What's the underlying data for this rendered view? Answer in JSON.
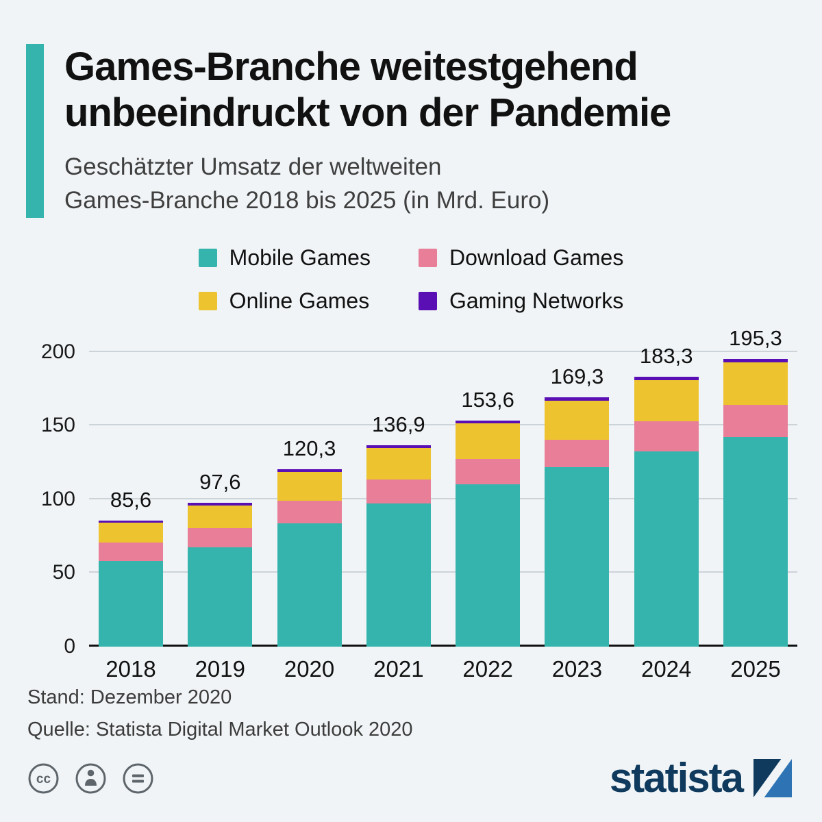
{
  "header": {
    "title_lines": [
      "Games-Branche weitestgehend",
      "unbeeindruckt von der Pandemie"
    ],
    "subtitle_lines": [
      "Geschätzter Umsatz der weltweiten",
      "Games-Branche 2018 bis 2025 (in Mrd. Euro)"
    ]
  },
  "chart_data": {
    "type": "bar",
    "stacked": true,
    "title": "Geschätzter Umsatz der weltweiten Games-Branche 2018 bis 2025 (in Mrd. Euro)",
    "categories": [
      "2018",
      "2019",
      "2020",
      "2021",
      "2022",
      "2023",
      "2024",
      "2025"
    ],
    "series": [
      {
        "name": "Mobile Games",
        "color": "#35b4ad",
        "values": [
          58.0,
          67.4,
          83.8,
          97.2,
          110.0,
          122.0,
          132.4,
          142.3
        ]
      },
      {
        "name": "Download Games",
        "color": "#e87e98",
        "values": [
          12.7,
          13.0,
          15.2,
          16.3,
          17.3,
          18.6,
          20.5,
          21.7
        ]
      },
      {
        "name": "Online Games",
        "color": "#edc32f",
        "values": [
          13.4,
          15.6,
          19.4,
          21.4,
          24.2,
          26.4,
          28.0,
          28.9
        ]
      },
      {
        "name": "Gaming Networks",
        "color": "#5a0fb4",
        "values": [
          1.5,
          1.6,
          1.9,
          2.0,
          2.1,
          2.3,
          2.4,
          2.4
        ]
      }
    ],
    "totals": [
      "85,6",
      "97,6",
      "120,3",
      "136,9",
      "153,6",
      "169,3",
      "183,3",
      "195,3"
    ],
    "ylim": [
      0,
      200
    ],
    "yticks": [
      0,
      50,
      100,
      150,
      200
    ],
    "grid": true,
    "legend_position": "top",
    "xlabel": "",
    "ylabel": ""
  },
  "footer": {
    "stand": "Stand: Dezember 2020",
    "quelle": "Quelle: Statista Digital Market Outlook 2020"
  },
  "branding": {
    "logo_text": "statista"
  },
  "icons": {
    "license": [
      "cc-icon",
      "attribution-icon",
      "no-derivatives-icon"
    ],
    "brand_mark": "statista-square-icon"
  },
  "colors": {
    "background": "#f0f4f6",
    "accent": "#35b4ad",
    "logo_navy": "#0f3a5e",
    "logo_azure": "#2e74b5",
    "gridline": "#ccd3d9",
    "axis": "#101010"
  }
}
